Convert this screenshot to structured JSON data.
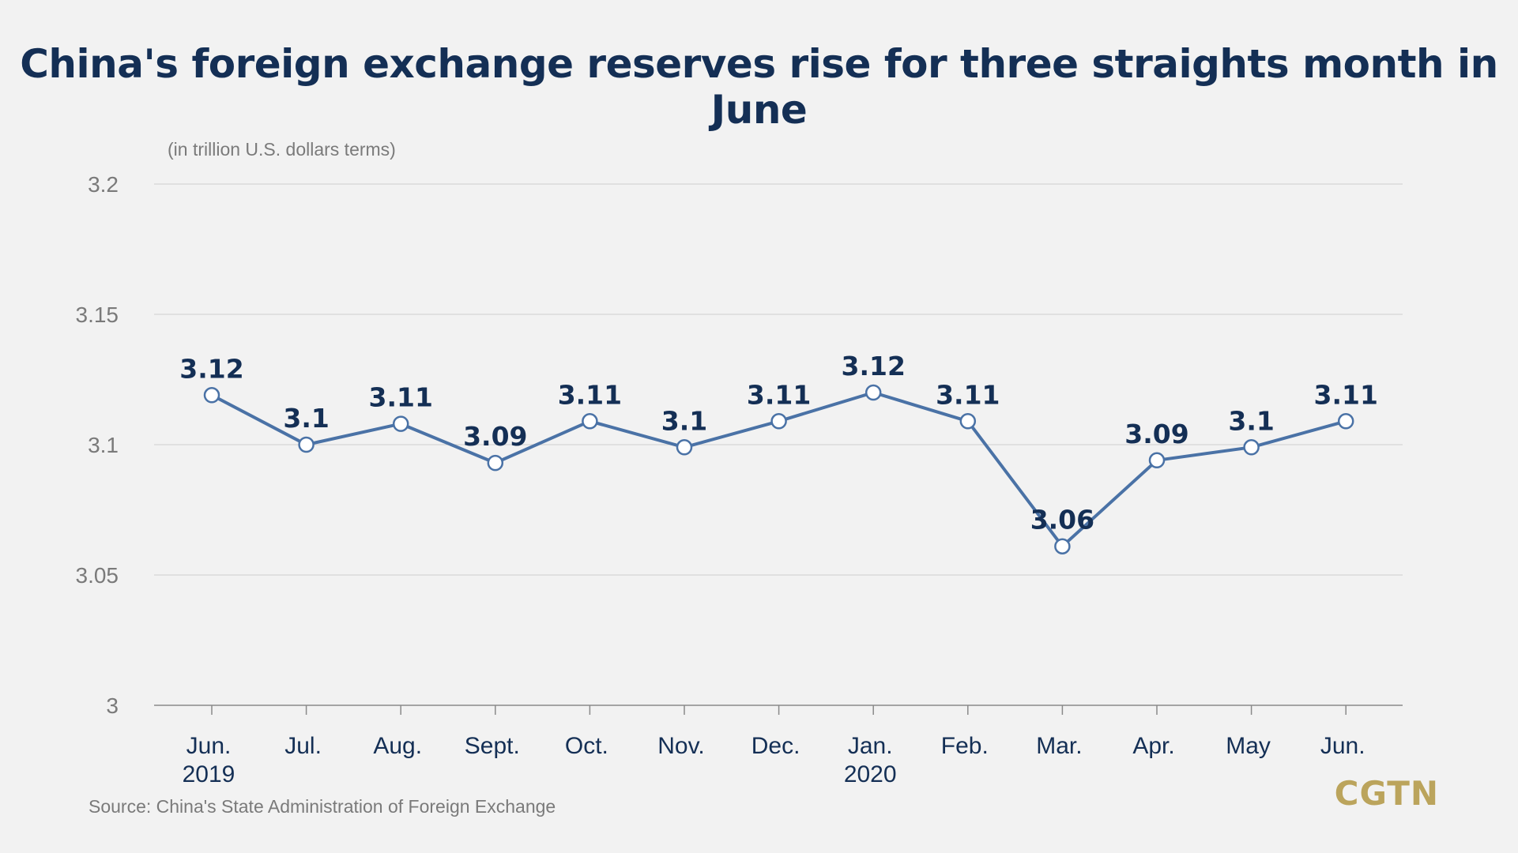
{
  "title": "China's foreign exchange reserves rise for three straights month in June",
  "unit_note": "(in trillion U.S. dollars terms)",
  "source": "Source: China's State Administration of Foreign Exchange",
  "logo": "CGTN",
  "colors": {
    "line": "#4a72a6",
    "label": "#142f55",
    "axis_text": "#7a7a7a",
    "grid": "#d6d6d6",
    "logo": "#bba45c",
    "background": "#f2f2f2"
  },
  "chart_data": {
    "type": "line",
    "title": "China's foreign exchange reserves rise for three straights month in June",
    "ylabel": "(in trillion U.S. dollars terms)",
    "xlabel": "",
    "categories": [
      "Jun.",
      "Jul.",
      "Aug.",
      "Sept.",
      "Oct.",
      "Nov.",
      "Dec.",
      "Jan.",
      "Feb.",
      "Mar.",
      "Apr.",
      "May",
      "Jun."
    ],
    "category_sublabels": [
      "2019",
      "",
      "",
      "",
      "",
      "",
      "",
      "2020",
      "",
      "",
      "",
      "",
      ""
    ],
    "series": [
      {
        "values": [
          3.119,
          3.1,
          3.108,
          3.093,
          3.109,
          3.099,
          3.109,
          3.12,
          3.109,
          3.061,
          3.094,
          3.099,
          3.109
        ],
        "data_labels": [
          "3.12",
          "3.1",
          "3.11",
          "3.09",
          "3.11",
          "3.1",
          "3.11",
          "3.12",
          "3.11",
          "3.06",
          "3.09",
          "3.1",
          "3.11"
        ]
      }
    ],
    "ylim": [
      3,
      3.2
    ],
    "yticks": [
      3,
      3.05,
      3.1,
      3.15,
      3.2
    ],
    "ytick_labels": [
      "3",
      "3.05",
      "3.1",
      "3.15",
      "3.2"
    ],
    "grid": true,
    "legend": "none"
  }
}
